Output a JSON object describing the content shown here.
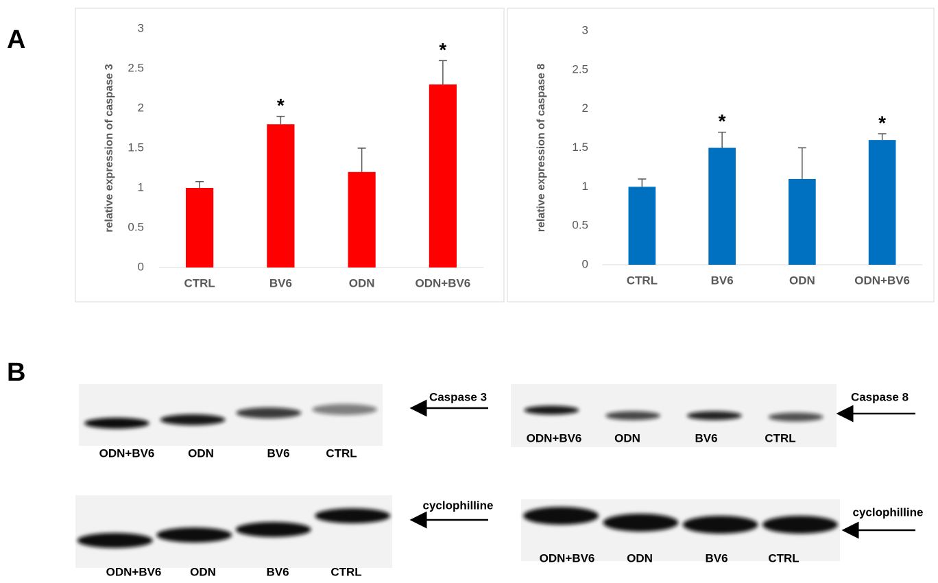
{
  "panel_labels": [
    "A",
    "B"
  ],
  "chart_data": [
    {
      "type": "bar",
      "ylabel": "relative expression of caspase 3",
      "categories": [
        "CTRL",
        "BV6",
        "ODN",
        "ODN+BV6"
      ],
      "values": [
        1,
        1.8,
        1.2,
        2.3
      ],
      "errors": [
        0.08,
        0.1,
        0.3,
        0.3
      ],
      "color": "#ff0000",
      "ylim": [
        0,
        3
      ],
      "yticks": [
        0,
        0.5,
        1,
        1.5,
        2,
        2.5,
        3
      ],
      "annotations": [
        {
          "category": "BV6",
          "text": "*"
        },
        {
          "category": "ODN+BV6",
          "text": "*"
        }
      ]
    },
    {
      "type": "bar",
      "ylabel": "relative expression of caspase 8",
      "categories": [
        "CTRL",
        "BV6",
        "ODN",
        "ODN+BV6"
      ],
      "values": [
        1,
        1.5,
        1.1,
        1.6
      ],
      "errors": [
        0.1,
        0.2,
        0.4,
        0.08
      ],
      "color": "#0070c0",
      "ylim": [
        0,
        3
      ],
      "yticks": [
        0,
        0.5,
        1,
        1.5,
        2,
        2.5,
        3
      ],
      "annotations": [
        {
          "category": "BV6",
          "text": "*"
        },
        {
          "category": "ODN+BV6",
          "text": "*"
        }
      ]
    }
  ],
  "blots": [
    {
      "protein": "Caspase 3",
      "lanes": [
        "ODN+BV6",
        "ODN",
        "BV6",
        "CTRL"
      ]
    },
    {
      "protein": "Caspase 8",
      "lanes": [
        "ODN+BV6",
        "ODN",
        "BV6",
        "CTRL"
      ]
    },
    {
      "protein": "cyclophilline",
      "lanes": [
        "ODN+BV6",
        "ODN",
        "BV6",
        "CTRL"
      ]
    },
    {
      "protein": "cyclophilline",
      "lanes": [
        "ODN+BV6",
        "ODN",
        "BV6",
        "CTRL"
      ]
    }
  ]
}
